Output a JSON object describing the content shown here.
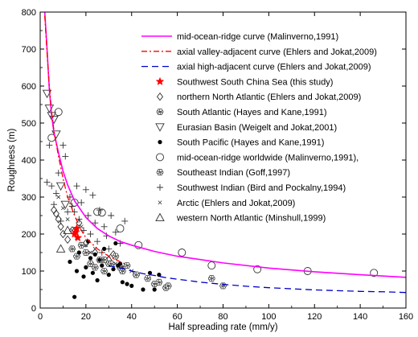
{
  "chart_data": {
    "type": "scatter",
    "xlabel": "Half spreading rate (mm/y)",
    "ylabel": "Roughness (m)",
    "xlim": [
      0,
      160
    ],
    "ylim": [
      0,
      800
    ],
    "xticks": [
      0,
      20,
      40,
      60,
      80,
      100,
      120,
      140,
      160
    ],
    "yticks": [
      0,
      100,
      200,
      300,
      400,
      500,
      600,
      700,
      800
    ],
    "grid": false,
    "legend_position": "top-right",
    "colors": {
      "mor_curve": "#ff00ff",
      "valley_curve": "#ff0000",
      "high_curve": "#0000cc",
      "scs_star": "#ff0000",
      "markers": "#333333"
    },
    "series": [
      {
        "name": "mid-ocean-ridge curve (Malinverno,1991)",
        "kind": "line",
        "style": "solid",
        "color": "#ff00ff",
        "x": [
          2,
          3,
          4,
          5,
          6,
          8,
          10,
          12,
          15,
          20,
          25,
          30,
          35,
          40,
          50,
          60,
          80,
          100,
          120,
          140,
          160
        ],
        "y": [
          800,
          700,
          590,
          520,
          475,
          420,
          370,
          333,
          290,
          245,
          215,
          195,
          180,
          170,
          153,
          140,
          122,
          108,
          98,
          90,
          83
        ]
      },
      {
        "name": "axial valley-adjacent curve (Ehlers and Jokat,2009)",
        "kind": "line",
        "style": "dashdot",
        "color": "#ff0000",
        "x": [
          2,
          3,
          4,
          5,
          6,
          8,
          10,
          12,
          15,
          18,
          20,
          25,
          30,
          35,
          37
        ],
        "y": [
          790,
          690,
          600,
          530,
          480,
          410,
          350,
          300,
          250,
          210,
          190,
          160,
          140,
          125,
          120
        ]
      },
      {
        "name": "axial high-adjacent curve (Ehlers and Jokat,2009)",
        "kind": "line",
        "style": "dashed",
        "color": "#0000cc",
        "x": [
          30,
          35,
          40,
          45,
          50,
          55,
          60,
          70,
          80,
          90,
          100,
          110,
          120,
          130,
          140,
          150,
          160
        ],
        "y": [
          115,
          108,
          100,
          93,
          88,
          82,
          78,
          70,
          64,
          59,
          55,
          52,
          49,
          47,
          45,
          44,
          42
        ]
      },
      {
        "name": "Southwest South China Sea (this study)",
        "kind": "scatter",
        "marker": "star-filled",
        "color": "#ff0000",
        "x": [
          15,
          16,
          16.5,
          15.5
        ],
        "y": [
          200,
          215,
          190,
          205
        ]
      },
      {
        "name": "northern North Atlantic (Ehlers and Jokat,2009)",
        "kind": "scatter",
        "marker": "diamond-open",
        "x": [
          6,
          7,
          8,
          9,
          10,
          12,
          14,
          17,
          20,
          24,
          30,
          32
        ],
        "y": [
          265,
          255,
          240,
          220,
          200,
          185,
          210,
          230,
          175,
          150,
          130,
          145
        ]
      },
      {
        "name": "South Atlantic (Hayes and Kane,1991)",
        "kind": "scatter",
        "marker": "flower",
        "x": [
          14,
          16,
          18,
          20,
          22,
          24,
          26,
          28,
          30,
          35,
          42,
          50,
          55,
          75,
          80
        ],
        "y": [
          160,
          140,
          170,
          150,
          120,
          110,
          130,
          100,
          120,
          110,
          90,
          65,
          55,
          80,
          60
        ]
      },
      {
        "name": "Eurasian Basin (Weigelt and Jokat,2001)",
        "kind": "scatter",
        "marker": "triangle-down-open",
        "x": [
          3,
          4,
          5,
          6,
          7,
          9,
          11
        ],
        "y": [
          580,
          540,
          520,
          510,
          470,
          330,
          280
        ]
      },
      {
        "name": "South Pacific (Hayes and Kane,1991)",
        "kind": "scatter",
        "marker": "circle-filled",
        "x": [
          13,
          15,
          16,
          17,
          19,
          20,
          21,
          22,
          23,
          24,
          25,
          26,
          27,
          28,
          30,
          32,
          33,
          34,
          35,
          36,
          38,
          40,
          45,
          48,
          50,
          52
        ],
        "y": [
          125,
          30,
          100,
          150,
          85,
          110,
          180,
          135,
          95,
          145,
          75,
          130,
          115,
          160,
          90,
          105,
          175,
          115,
          120,
          70,
          65,
          60,
          50,
          95,
          50,
          90
        ]
      },
      {
        "name": "mid-ocean-ridge worldwide (Malinverno,1991),",
        "kind": "scatter",
        "marker": "circle-open",
        "x": [
          5,
          8,
          15,
          25,
          27,
          35,
          43,
          62,
          75,
          95,
          117,
          146
        ],
        "y": [
          460,
          530,
          285,
          260,
          258,
          215,
          170,
          150,
          115,
          105,
          100,
          95
        ]
      },
      {
        "name": "Southeast Indian (Goff,1997)",
        "kind": "scatter",
        "marker": "flower",
        "x": [
          28,
          31,
          33,
          36,
          38,
          42,
          47,
          52,
          56
        ],
        "y": [
          130,
          120,
          140,
          100,
          115,
          90,
          80,
          70,
          60
        ]
      },
      {
        "name": "Southwest Indian (Bird and Pockalny,1994)",
        "kind": "scatter",
        "marker": "plus",
        "x": [
          3,
          4,
          5,
          6,
          7,
          8,
          9,
          10,
          11,
          12,
          13,
          14,
          15,
          16,
          17,
          18,
          19,
          20,
          21,
          22,
          23,
          24,
          25,
          26,
          27,
          28,
          29,
          30,
          31,
          33,
          35,
          37
        ],
        "y": [
          340,
          440,
          330,
          280,
          310,
          365,
          235,
          440,
          410,
          260,
          300,
          275,
          260,
          330,
          240,
          285,
          210,
          320,
          250,
          200,
          305,
          230,
          180,
          265,
          150,
          220,
          195,
          160,
          250,
          205,
          175,
          235
        ]
      },
      {
        "name": "Arctic (Ehlers and Jokat,2009)",
        "kind": "scatter",
        "marker": "cross",
        "x": [
          8,
          10,
          12,
          14,
          16,
          18,
          20,
          22,
          24,
          27,
          30,
          33,
          36,
          40
        ],
        "y": [
          300,
          270,
          240,
          210,
          190,
          220,
          170,
          150,
          160,
          130,
          140,
          120,
          110,
          100
        ]
      },
      {
        "name": "western North Atlantic (Minshull,1999)",
        "kind": "scatter",
        "marker": "triangle-up-open",
        "x": [
          9,
          12
        ],
        "y": [
          160,
          210
        ]
      }
    ]
  }
}
